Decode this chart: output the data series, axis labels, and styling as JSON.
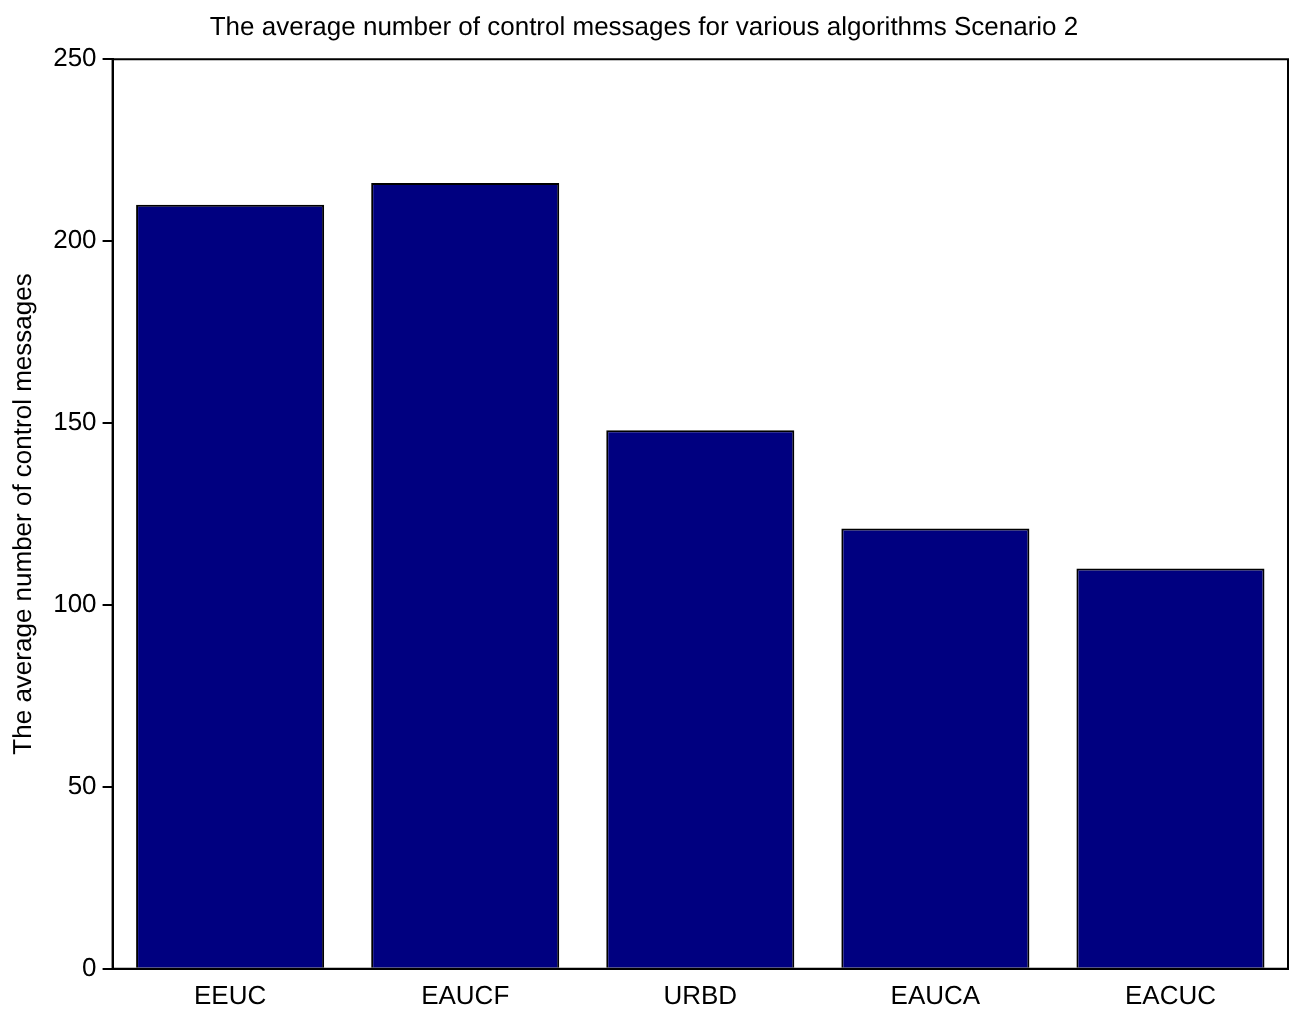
{
  "chart_data": {
    "type": "bar",
    "title": "The average number of control messages for various algorithms Scenario 2",
    "ylabel": "The average number of control messages",
    "categories": [
      "EEUC",
      "EAUCF",
      "URBD",
      "EAUCA",
      "EACUC"
    ],
    "values": [
      210,
      216,
      148,
      121,
      110
    ],
    "color": "#000080",
    "ylim": [
      0,
      250
    ],
    "yticks": [
      0,
      50,
      100,
      150,
      200,
      250
    ],
    "grid": false,
    "legend": false
  }
}
